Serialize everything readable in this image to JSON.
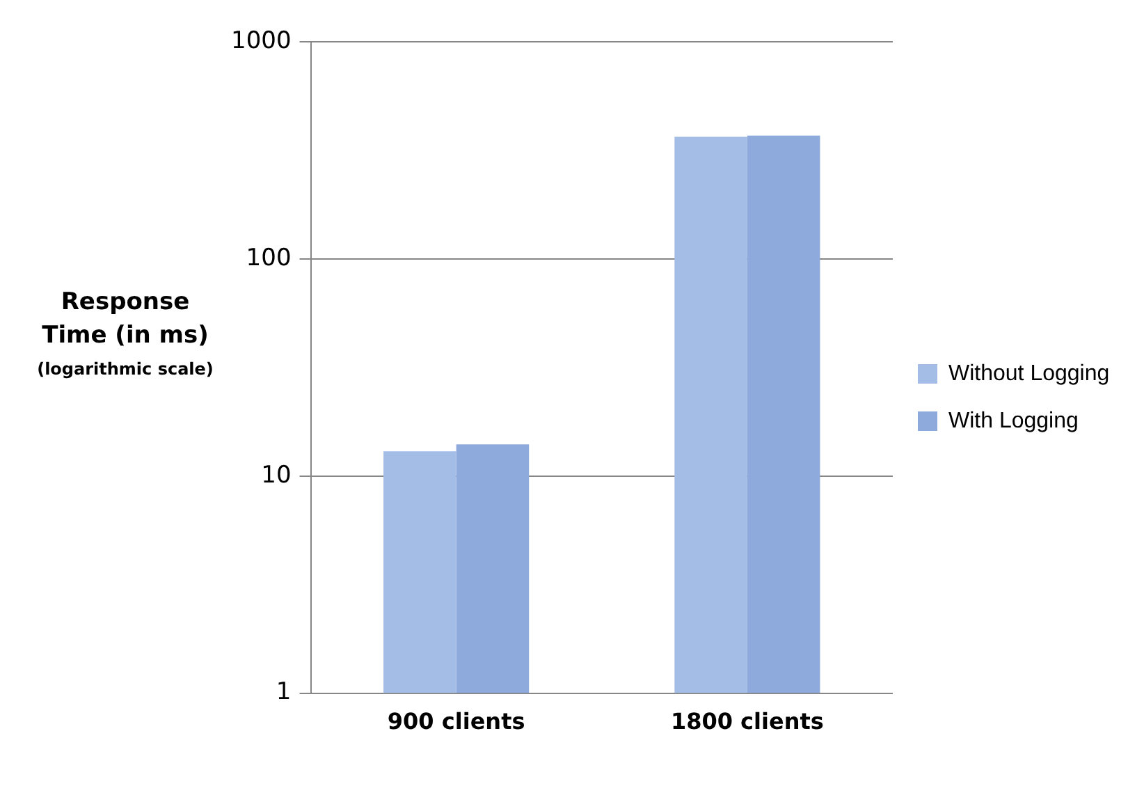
{
  "chart_data": {
    "type": "bar",
    "ylabel": "Response Time (in ms)",
    "annotations": [
      "(logarithmic scale)"
    ],
    "categories": [
      "900 clients",
      "1800 clients"
    ],
    "series": [
      {
        "name": "Without Logging",
        "color": "#a3bde6",
        "values": [
          13,
          365
        ]
      },
      {
        "name": "With Logging",
        "color": "#8eaadc",
        "values": [
          14,
          370
        ]
      }
    ],
    "log": "y",
    "ylim": [
      1,
      1000
    ],
    "yticks": [
      1,
      10,
      100,
      1000
    ],
    "grid": "y",
    "legend": "right"
  }
}
